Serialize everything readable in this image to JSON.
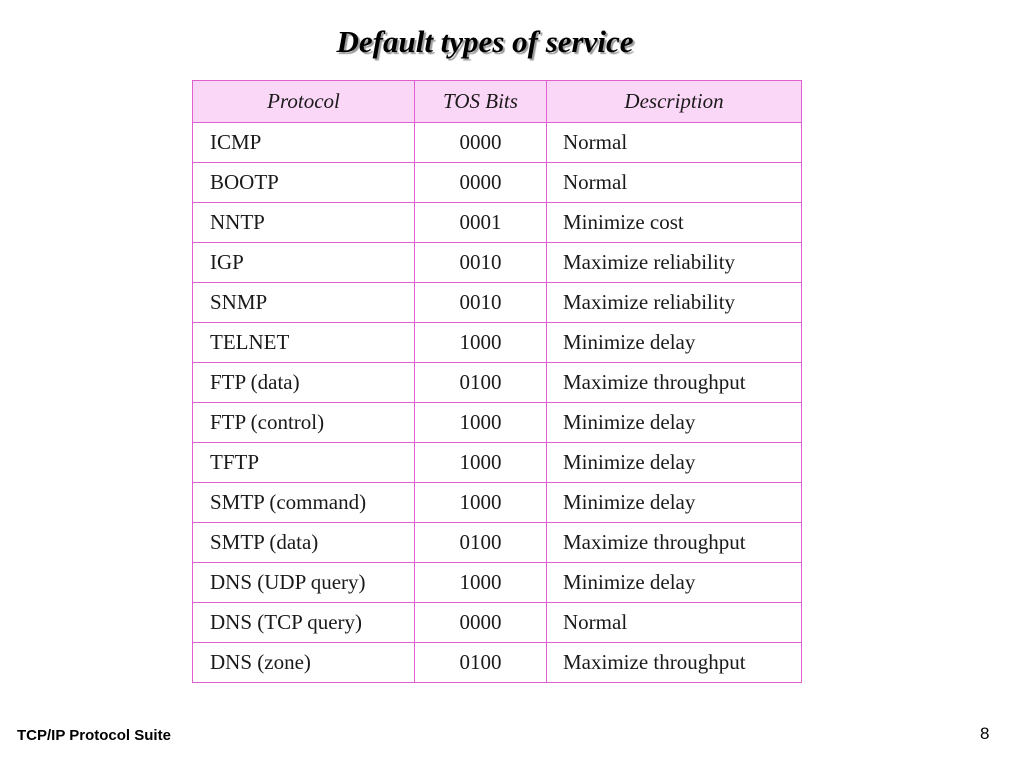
{
  "slide": {
    "title": "Default types of service",
    "footer": "TCP/IP Protocol Suite",
    "page_number": "8"
  },
  "table": {
    "headers": [
      "Protocol",
      "TOS Bits",
      "Description"
    ],
    "rows": [
      {
        "protocol": "ICMP",
        "bits": "0000",
        "description": "Normal"
      },
      {
        "protocol": "BOOTP",
        "bits": "0000",
        "description": "Normal"
      },
      {
        "protocol": "NNTP",
        "bits": "0001",
        "description": "Minimize cost"
      },
      {
        "protocol": "IGP",
        "bits": "0010",
        "description": "Maximize reliability"
      },
      {
        "protocol": "SNMP",
        "bits": "0010",
        "description": "Maximize reliability"
      },
      {
        "protocol": "TELNET",
        "bits": "1000",
        "description": "Minimize delay"
      },
      {
        "protocol": "FTP (data)",
        "bits": "0100",
        "description": "Maximize throughput"
      },
      {
        "protocol": "FTP (control)",
        "bits": "1000",
        "description": "Minimize delay"
      },
      {
        "protocol": "TFTP",
        "bits": "1000",
        "description": "Minimize delay"
      },
      {
        "protocol": "SMTP (command)",
        "bits": "1000",
        "description": "Minimize delay"
      },
      {
        "protocol": "SMTP (data)",
        "bits": "0100",
        "description": "Maximize throughput"
      },
      {
        "protocol": "DNS (UDP query)",
        "bits": "1000",
        "description": "Minimize delay"
      },
      {
        "protocol": "DNS (TCP query)",
        "bits": "0000",
        "description": "Normal"
      },
      {
        "protocol": "DNS (zone)",
        "bits": "0100",
        "description": "Maximize throughput"
      }
    ]
  },
  "colors": {
    "table_border": "#e060cf",
    "header_background": "#fbd7f7"
  }
}
